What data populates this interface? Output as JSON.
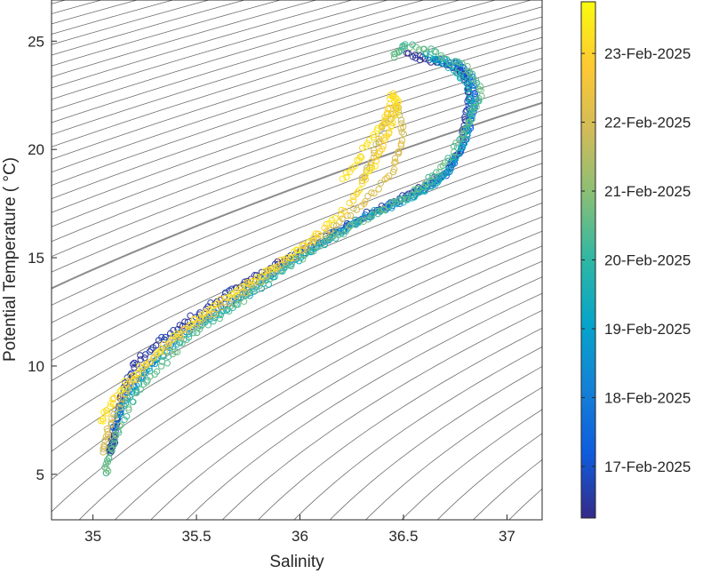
{
  "chart_data": {
    "type": "scatter",
    "title": "",
    "xlabel": "Salinity",
    "ylabel": "Potential Temperature ( °C)",
    "xlim": [
      34.8,
      37.17
    ],
    "ylim": [
      2.9,
      26.9
    ],
    "xticks": [
      35,
      35.5,
      36,
      36.5,
      37
    ],
    "xtick_labels": [
      "35",
      "35.5",
      "36",
      "36.5",
      "37"
    ],
    "yticks": [
      5,
      10,
      15,
      20,
      25
    ],
    "ytick_labels": [
      "5",
      "10",
      "15",
      "20",
      "25"
    ],
    "grid": false,
    "marker": "open-circle",
    "background_contours": "isopycnals",
    "highlighted_isopycnal_at": {
      "salinity": 35.0,
      "temperature": 14.45
    },
    "colorbar": {
      "colormap": "parula",
      "range_days": [
        16.25,
        23.75
      ],
      "ticks": [
        {
          "day": 17,
          "label": "17-Feb-2025"
        },
        {
          "day": 18,
          "label": "18-Feb-2025"
        },
        {
          "day": 19,
          "label": "19-Feb-2025"
        },
        {
          "day": 20,
          "label": "20-Feb-2025"
        },
        {
          "day": 21,
          "label": "21-Feb-2025"
        },
        {
          "day": 22,
          "label": "22-Feb-2025"
        },
        {
          "day": 23,
          "label": "23-Feb-2025"
        }
      ],
      "color_stops": [
        "#352a87",
        "#0f5cdd",
        "#1481d6",
        "#06a4ca",
        "#2eb7a4",
        "#87bf77",
        "#d1bb59",
        "#fec832",
        "#f9fb0e"
      ]
    },
    "series": [
      {
        "date_day": 16.5,
        "salinity": [
          35.08,
          35.09,
          35.1,
          35.12,
          35.14,
          35.2,
          35.3,
          35.45,
          35.6,
          35.75,
          35.9,
          36.05,
          36.2,
          36.35,
          36.5,
          36.62,
          36.72,
          36.78,
          36.8,
          36.82,
          36.8,
          36.75,
          36.62,
          36.5
        ],
        "temperature": [
          6.0,
          6.3,
          6.7,
          7.5,
          8.7,
          10.0,
          11.0,
          12.0,
          13.0,
          13.9,
          14.8,
          15.5,
          16.4,
          17.1,
          17.8,
          18.4,
          19.1,
          20.0,
          21.3,
          22.5,
          23.3,
          23.8,
          24.2,
          24.4
        ]
      },
      {
        "date_day": 17.5,
        "salinity": [
          35.1,
          35.15,
          35.25,
          35.4,
          35.55,
          35.7,
          35.85,
          36.0,
          36.15,
          36.3,
          36.45,
          36.58,
          36.7,
          36.78,
          36.82,
          36.85,
          36.82,
          36.75,
          36.65
        ],
        "temperature": [
          7.0,
          8.5,
          9.8,
          11.3,
          12.3,
          13.2,
          14.2,
          15.2,
          16.0,
          16.8,
          17.5,
          18.1,
          18.8,
          20.0,
          21.0,
          22.4,
          23.4,
          24.0,
          24.2
        ]
      },
      {
        "date_day": 19.5,
        "salinity": [
          35.12,
          35.2,
          35.3,
          35.45,
          35.6,
          35.75,
          35.9,
          36.05,
          36.2,
          36.35,
          36.5,
          36.62,
          36.72,
          36.8,
          36.84,
          36.8,
          36.7,
          36.6
        ],
        "temperature": [
          7.8,
          9.0,
          10.2,
          11.4,
          12.3,
          13.3,
          14.3,
          15.3,
          16.2,
          17.0,
          17.6,
          18.2,
          19.0,
          20.5,
          22.0,
          23.2,
          24.0,
          24.4
        ]
      },
      {
        "date_day": 20.5,
        "salinity": [
          35.06,
          35.08,
          35.12,
          35.22,
          35.35,
          35.5,
          35.65,
          35.8,
          35.95,
          36.1,
          36.25,
          36.4,
          36.55,
          36.65,
          36.75,
          36.82,
          36.88,
          36.8,
          36.65,
          36.5,
          36.45
        ],
        "temperature": [
          5.0,
          6.0,
          7.0,
          8.8,
          10.3,
          11.6,
          12.6,
          13.7,
          14.7,
          15.6,
          16.5,
          17.2,
          18.0,
          18.8,
          20.0,
          21.3,
          22.7,
          23.8,
          24.5,
          24.8,
          24.2
        ]
      },
      {
        "date_day": 22.0,
        "salinity": [
          35.05,
          35.08,
          35.15,
          35.25,
          35.4,
          35.55,
          35.7,
          35.85,
          36.0,
          36.15,
          36.3,
          36.45,
          36.5,
          36.47,
          36.4,
          36.35,
          36.3
        ],
        "temperature": [
          6.0,
          7.3,
          8.7,
          10.0,
          11.3,
          12.3,
          13.3,
          14.3,
          15.3,
          16.3,
          17.5,
          19.0,
          20.5,
          22.0,
          21.0,
          19.5,
          18.5
        ]
      },
      {
        "date_day": 23.2,
        "salinity": [
          35.04,
          35.1,
          35.2,
          35.35,
          35.5,
          35.65,
          35.8,
          35.95,
          36.1,
          36.25,
          36.35,
          36.42,
          36.47,
          36.45,
          36.4,
          36.3,
          36.2
        ],
        "temperature": [
          7.5,
          8.4,
          9.6,
          11.0,
          12.2,
          13.2,
          14.1,
          15.1,
          16.2,
          17.6,
          19.2,
          20.6,
          22.0,
          22.5,
          21.2,
          19.8,
          18.5
        ]
      }
    ]
  }
}
